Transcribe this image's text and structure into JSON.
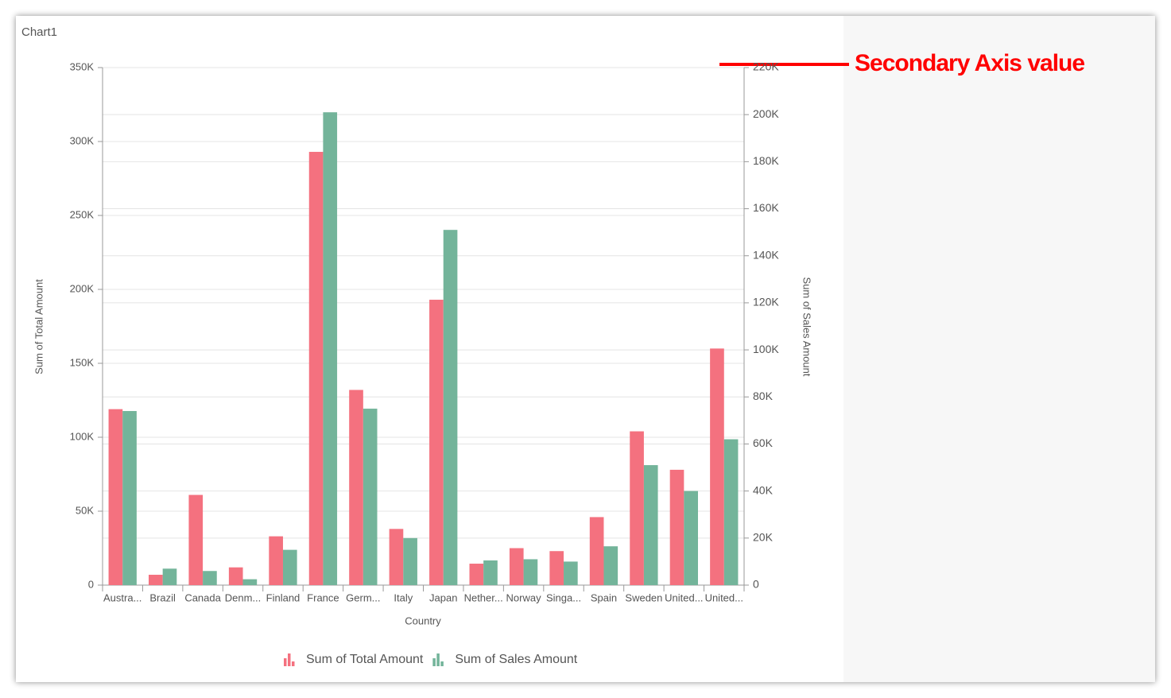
{
  "chart_data": {
    "type": "bar",
    "title": "Chart1",
    "annotation": "Secondary Axis value",
    "x_label": "Country",
    "y_label": "Sum of Total Amount",
    "y2_label": "Sum of Sales Amount",
    "categories": [
      "Austra...",
      "Brazil",
      "Canada",
      "Denm...",
      "Finland",
      "France",
      "Germ...",
      "Italy",
      "Japan",
      "Nether...",
      "Norway",
      "Singa...",
      "Spain",
      "Sweden",
      "United...",
      "United..."
    ],
    "series": [
      {
        "name": "Sum of Total Amount",
        "color": "#f4717f",
        "values": [
          119000,
          7000,
          61000,
          12000,
          33000,
          293000,
          132000,
          38000,
          193000,
          14500,
          25000,
          23000,
          46000,
          104000,
          78000,
          160000
        ]
      },
      {
        "name": "Sum of Sales Amount",
        "color": "#73b49a",
        "axis": "y2",
        "values": [
          74000,
          7000,
          6000,
          2500,
          15000,
          201000,
          75000,
          20000,
          151000,
          10500,
          11000,
          10000,
          16500,
          51000,
          40000,
          62000
        ]
      }
    ],
    "ylim": [
      0,
      350000
    ],
    "yticks": [
      0,
      {
        "value": 50000,
        "label": "50K"
      },
      {
        "value": 100000,
        "label": "100K"
      },
      {
        "value": 150000,
        "label": "150K"
      },
      {
        "value": 200000,
        "label": "200K"
      },
      {
        "value": 250000,
        "label": "250K"
      },
      {
        "value": 300000,
        "label": "300K"
      },
      {
        "value": 350000,
        "label": "350K"
      }
    ],
    "y2lim": [
      0,
      220000
    ],
    "y2ticks": [
      0,
      {
        "value": 20000,
        "label": "20K"
      },
      {
        "value": 40000,
        "label": "40K"
      },
      {
        "value": 60000,
        "label": "60K"
      },
      {
        "value": 80000,
        "label": "80K"
      },
      {
        "value": 100000,
        "label": "100K"
      },
      {
        "value": 120000,
        "label": "120K"
      },
      {
        "value": 140000,
        "label": "140K"
      },
      {
        "value": 160000,
        "label": "160K"
      },
      {
        "value": 180000,
        "label": "180K"
      },
      {
        "value": 200000,
        "label": "200K"
      },
      {
        "value": 220000,
        "label": "220K"
      }
    ],
    "grid": true,
    "legend": "bottom"
  }
}
